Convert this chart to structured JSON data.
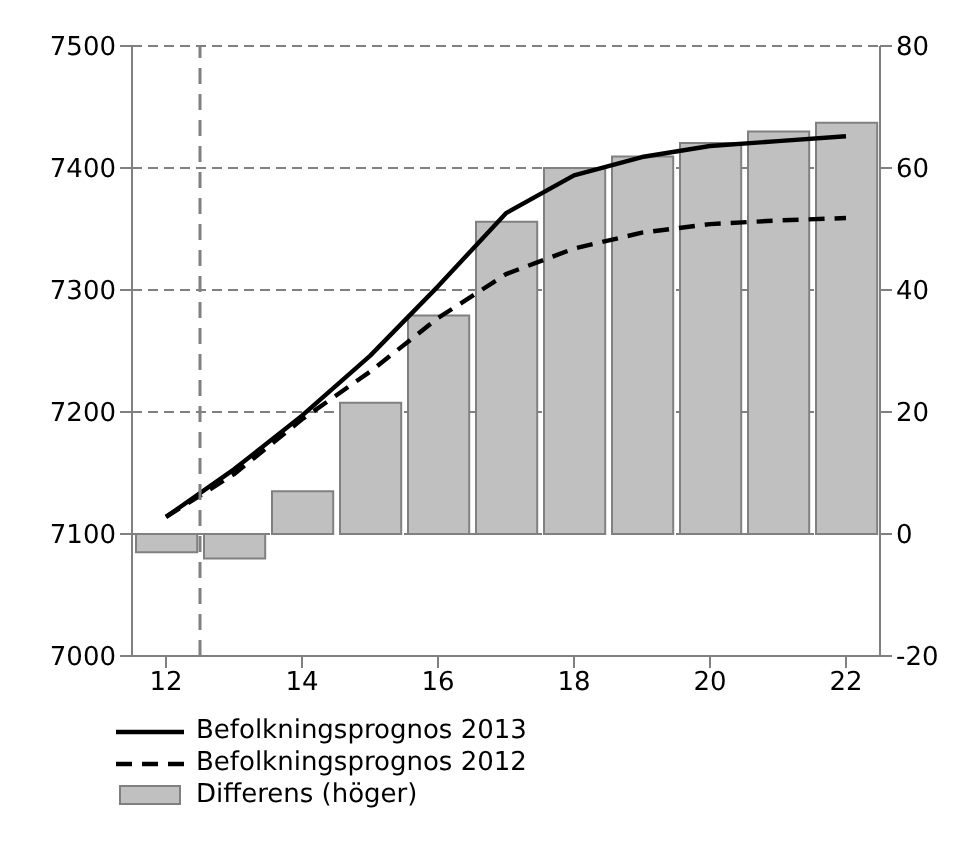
{
  "chart_data": {
    "type": "line",
    "x": [
      12,
      13,
      14,
      15,
      16,
      17,
      18,
      19,
      20,
      21,
      22
    ],
    "series": [
      {
        "name": "Befolkningsprognos 2013",
        "color": "#000000",
        "line_style": "solid",
        "values": [
          7114,
          7153,
          7197,
          7246,
          7303,
          7363,
          7394,
          7409,
          7418,
          7422,
          7426
        ]
      },
      {
        "name": "Befolkningsprognos 2012",
        "color": "#000000",
        "line_style": "dashed",
        "values": [
          7114,
          7149,
          7194,
          7233,
          7277,
          7313,
          7334,
          7347,
          7354,
          7357,
          7359
        ]
      },
      {
        "name": "Differens (höger)",
        "type": "bar",
        "axis": "y2",
        "color": "#c0c0c0",
        "values": [
          -3,
          -4,
          7,
          21.5,
          35.8,
          51.2,
          60,
          61.9,
          64.1,
          66,
          67.4
        ]
      }
    ],
    "xlim": [
      11.5,
      22.5
    ],
    "xticks": [
      12,
      14,
      16,
      18,
      20,
      22
    ],
    "ylim": [
      7000,
      7500
    ],
    "yticks": [
      7000,
      7100,
      7200,
      7300,
      7400,
      7500
    ],
    "y2lim": [
      -20,
      80
    ],
    "y2ticks": [
      -20,
      0,
      20,
      40,
      60,
      80
    ],
    "ref_lines": [
      {
        "axis": "x",
        "value": 12.5,
        "line_style": "dashed",
        "color": "#808080"
      }
    ],
    "grid": "y",
    "legend": "bottom",
    "marker": "none"
  }
}
